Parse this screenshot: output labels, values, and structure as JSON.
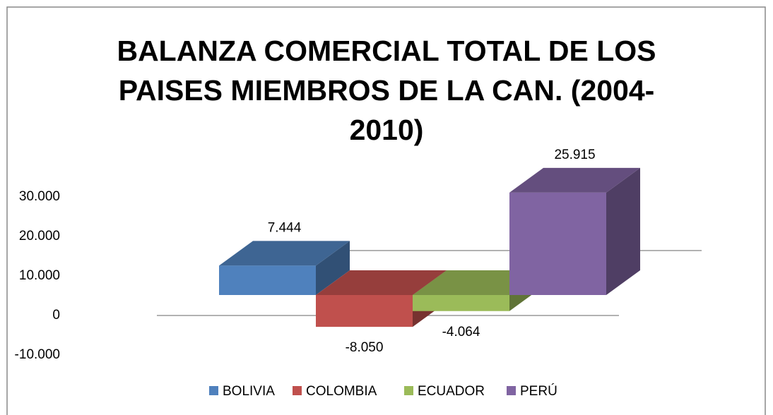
{
  "chart_data": {
    "type": "bar3d",
    "title": "BALANZA COMERCIAL TOTAL DE LOS PAISES MIEMBROS DE LA CAN. (2004-2010)",
    "series": [
      {
        "name": "BOLIVIA",
        "color": "#4f81bd",
        "values": [
          7444
        ],
        "value_labels": [
          "7.444"
        ]
      },
      {
        "name": "COLOMBIA",
        "color": "#c0504d",
        "values": [
          -8050
        ],
        "value_labels": [
          "-8.050"
        ]
      },
      {
        "name": "ECUADOR",
        "color": "#9bbb59",
        "values": [
          -4064
        ],
        "value_labels": [
          "-4.064"
        ]
      },
      {
        "name": "PERÚ",
        "color": "#8064a2",
        "values": [
          25915
        ],
        "value_labels": [
          "25.915"
        ]
      }
    ],
    "ylim": [
      -10000,
      30000
    ],
    "yticks": [
      {
        "value": -10000,
        "label": "-10.000"
      },
      {
        "value": 10000,
        "label": "10.000"
      },
      {
        "value": 20000,
        "label": "20.000"
      },
      {
        "value": 30000,
        "label": "30.000"
      },
      0
    ],
    "legend": "bottom"
  }
}
